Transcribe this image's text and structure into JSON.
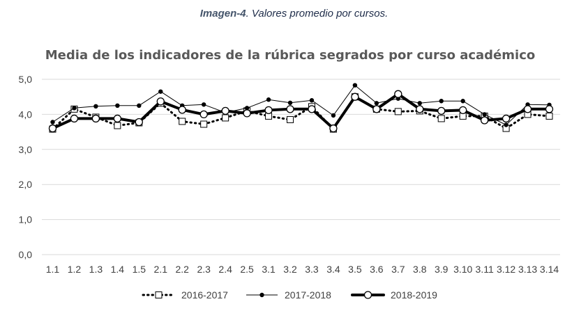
{
  "caption": {
    "label": "Imagen-4",
    "text": ". Valores promedio por cursos."
  },
  "chart_data": {
    "type": "line",
    "title": "Media de los indicadores de la rúbrica segrados por curso académico",
    "xlabel": "",
    "ylabel": "",
    "ylim": [
      0,
      5
    ],
    "yticks": [
      "0,0",
      "1,0",
      "2,0",
      "3,0",
      "4,0",
      "5,0"
    ],
    "grid": true,
    "legend_position": "bottom",
    "categories": [
      "1.1",
      "1.2",
      "1.3",
      "1.4",
      "1.5",
      "2.1",
      "2.2",
      "2.3",
      "2.4",
      "2.5",
      "3.1",
      "3.2",
      "3.3",
      "3.4",
      "3.5",
      "3.6",
      "3.7",
      "3.8",
      "3.9",
      "3.10",
      "3.11",
      "3.12",
      "3.13",
      "3.14"
    ],
    "series": [
      {
        "name": "2016-2017",
        "style": "dotted-square",
        "color": "#000000",
        "values": [
          3.58,
          4.15,
          3.92,
          3.68,
          3.76,
          4.32,
          3.8,
          3.72,
          3.9,
          4.1,
          3.95,
          3.85,
          4.22,
          3.58,
          4.5,
          4.15,
          4.08,
          4.1,
          3.88,
          3.95,
          3.95,
          3.6,
          4.0,
          3.95
        ]
      },
      {
        "name": "2017-2018",
        "style": "thin-dot",
        "color": "#000000",
        "values": [
          3.78,
          4.18,
          4.23,
          4.25,
          4.25,
          4.65,
          4.25,
          4.28,
          4.05,
          4.18,
          4.42,
          4.33,
          4.4,
          3.97,
          4.83,
          4.32,
          4.45,
          4.32,
          4.38,
          4.38,
          4.0,
          3.7,
          4.28,
          4.27
        ]
      },
      {
        "name": "2018-2019",
        "style": "thick-circle",
        "color": "#000000",
        "values": [
          3.6,
          3.88,
          3.88,
          3.88,
          3.78,
          4.37,
          4.13,
          4.0,
          4.1,
          4.03,
          4.12,
          4.15,
          4.15,
          3.6,
          4.5,
          4.15,
          4.58,
          4.15,
          4.1,
          4.12,
          3.83,
          3.88,
          4.15,
          4.15
        ]
      }
    ]
  }
}
